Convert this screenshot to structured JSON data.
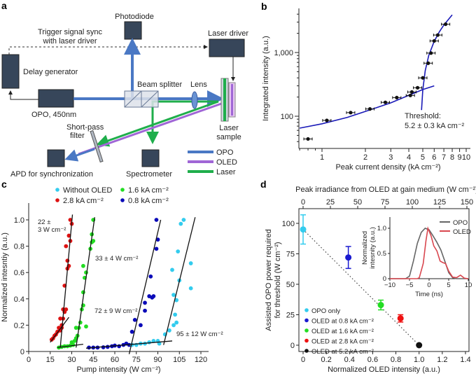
{
  "panels": {
    "a": {
      "label": "a",
      "components": {
        "photodiode": "Photodiode",
        "trigger": [
          "Trigger signal sync",
          "with laser driver"
        ],
        "laser_driver": "Laser driver",
        "delay_generator": "Delay generator",
        "opo": "OPO, 450nm",
        "beam_splitter": "Beam splitter",
        "lens": "Lens",
        "laser_sample": [
          "Laser",
          "sample"
        ],
        "short_pass": [
          "Short-pass",
          "filter"
        ],
        "apd": "APD for synchronization",
        "spectrometer": "Spectrometer"
      },
      "legend": [
        {
          "label": "OPO",
          "color": "#4a78c4"
        },
        {
          "label": "OLED",
          "color": "#a066d6"
        },
        {
          "label": "Laser",
          "color": "#1fae4b"
        }
      ]
    },
    "b": {
      "label": "b",
      "threshold_text": [
        "Threshold:",
        "5.2 ± 0.3 kA cm⁻²"
      ]
    },
    "c": {
      "label": "c"
    },
    "d": {
      "label": "d",
      "inset_legend": [
        {
          "label": "OPO",
          "color": "#666666"
        },
        {
          "label": "OLED",
          "color": "#d9474f"
        }
      ]
    }
  },
  "chart_data": [
    {
      "id": "b",
      "type": "scatter",
      "title": "",
      "xlabel": "Peak current density (kA cm⁻²)",
      "ylabel": "Integrated intensity (a.u.)",
      "xscale": "log",
      "yscale": "log",
      "xlim": [
        0.7,
        11
      ],
      "ylim": [
        32,
        4800
      ],
      "xticks": [
        1,
        2,
        3,
        4,
        5,
        6,
        7,
        8,
        9,
        10
      ],
      "xtick_labels": [
        "1",
        "2",
        "3",
        "4",
        "5",
        "6",
        "7",
        "8",
        "9",
        "10"
      ],
      "yticks": [
        100,
        1000
      ],
      "ytick_labels": [
        "100",
        "1,000"
      ],
      "points": [
        {
          "x": 0.8,
          "y": 44
        },
        {
          "x": 1.08,
          "y": 86
        },
        {
          "x": 1.58,
          "y": 114
        },
        {
          "x": 2.15,
          "y": 130
        },
        {
          "x": 2.75,
          "y": 165
        },
        {
          "x": 3.3,
          "y": 196
        },
        {
          "x": 4.1,
          "y": 212
        },
        {
          "x": 4.2,
          "y": 240
        },
        {
          "x": 4.6,
          "y": 280
        },
        {
          "x": 5.0,
          "y": 400
        },
        {
          "x": 5.45,
          "y": 680
        },
        {
          "x": 5.7,
          "y": 980
        },
        {
          "x": 6.0,
          "y": 1520
        },
        {
          "x": 6.35,
          "y": 1880
        },
        {
          "x": 7.2,
          "y": 2780
        }
      ],
      "fits": [
        {
          "name": "below threshold",
          "color": "#1a1ab8",
          "points": [
            [
              0.7,
              65
            ],
            [
              1,
              76
            ],
            [
              1.5,
              96
            ],
            [
              2,
              119
            ],
            [
              3,
              162
            ],
            [
              4,
              213
            ],
            [
              5,
              262
            ],
            [
              6,
              300
            ]
          ]
        },
        {
          "name": "above threshold",
          "color": "#1a1ab8",
          "points": [
            [
              4.9,
              125
            ],
            [
              5.0,
              260
            ],
            [
              5.2,
              520
            ],
            [
              5.5,
              900
            ],
            [
              6.0,
              1500
            ],
            [
              6.5,
              2100
            ],
            [
              7.0,
              2700
            ],
            [
              8.0,
              3900
            ]
          ]
        }
      ],
      "annotation": "Threshold: 5.2 ± 0.3 kA cm⁻²"
    },
    {
      "id": "c",
      "type": "scatter",
      "xlabel": "Pump intensity (W cm⁻²)",
      "ylabel": "Normalized intesntiy (a.u.)",
      "xlim": [
        0,
        125
      ],
      "ylim": [
        0,
        1.08
      ],
      "xticks": [
        0,
        15,
        30,
        45,
        60,
        75,
        90,
        105,
        120
      ],
      "yticks": [
        0,
        0.2,
        0.4,
        0.6,
        0.8,
        1.0
      ],
      "ytick_labels": [
        "0",
        "0.2",
        "0.4",
        "0.6",
        "0.8",
        "1.0"
      ],
      "legend": [
        {
          "label": "Without OLED",
          "color": "#33ccee"
        },
        {
          "label": "1.6 kA cm⁻²",
          "color": "#22dd22"
        },
        {
          "label": "2.8 kA cm⁻²",
          "color": "#dd1111"
        },
        {
          "label": "0.8 kA cm⁻²",
          "color": "#0a0ab8"
        }
      ],
      "series": [
        {
          "name": "2.8 kA cm⁻²",
          "color": "#dd1111",
          "points": [
            [
              16,
              0.09
            ],
            [
              17,
              0.1
            ],
            [
              18,
              0.12
            ],
            [
              19,
              0.13
            ],
            [
              20,
              0.15
            ],
            [
              21,
              0.18
            ],
            [
              22,
              0.16
            ],
            [
              23,
              0.2
            ],
            [
              24,
              0.25
            ],
            [
              22,
              0.25
            ],
            [
              25,
              0.3
            ],
            [
              26,
              0.32
            ],
            [
              25,
              0.5
            ],
            [
              27,
              0.63
            ],
            [
              28,
              0.65
            ],
            [
              27,
              0.69
            ],
            [
              26,
              0.8
            ],
            [
              29,
              0.84
            ],
            [
              28,
              0.88
            ],
            [
              30,
              0.97
            ],
            [
              29,
              1.0
            ],
            [
              23,
              0.18
            ],
            [
              24,
              0.32
            ]
          ]
        },
        {
          "name": "1.6 kA cm⁻²",
          "color": "#22dd22",
          "points": [
            [
              21,
              0.03
            ],
            [
              23,
              0.035
            ],
            [
              25,
              0.04
            ],
            [
              27,
              0.04
            ],
            [
              29,
              0.045
            ],
            [
              31,
              0.05
            ],
            [
              30,
              0.07
            ],
            [
              32,
              0.08
            ],
            [
              33,
              0.1
            ],
            [
              34,
              0.12
            ],
            [
              33,
              0.18
            ],
            [
              35,
              0.18
            ],
            [
              36,
              0.22
            ],
            [
              40,
              0.19
            ],
            [
              37,
              0.32
            ],
            [
              38,
              0.35
            ],
            [
              38,
              0.45
            ],
            [
              39,
              0.56
            ],
            [
              40,
              0.6
            ],
            [
              38,
              0.65
            ],
            [
              43,
              0.78
            ],
            [
              44,
              0.83
            ],
            [
              45,
              0.84
            ],
            [
              44,
              0.89
            ],
            [
              45,
              1.0
            ]
          ]
        },
        {
          "name": "0.8 kA cm⁻²",
          "color": "#0a0ab8",
          "points": [
            [
              42,
              0.03
            ],
            [
              45,
              0.03
            ],
            [
              48,
              0.03
            ],
            [
              52,
              0.032
            ],
            [
              55,
              0.035
            ],
            [
              58,
              0.04
            ],
            [
              60,
              0.045
            ],
            [
              63,
              0.04
            ],
            [
              66,
              0.05
            ],
            [
              68,
              0.06
            ],
            [
              70,
              0.05
            ],
            [
              72,
              0.15
            ],
            [
              74,
              0.24
            ],
            [
              78,
              0.2
            ],
            [
              81,
              0.31
            ],
            [
              81,
              0.37
            ],
            [
              84,
              0.42
            ],
            [
              86,
              0.41
            ],
            [
              87,
              0.42
            ],
            [
              85,
              0.57
            ],
            [
              89,
              0.78
            ],
            [
              90,
              0.85
            ],
            [
              89,
              1.0
            ]
          ]
        },
        {
          "name": "Without OLED",
          "color": "#33ccee",
          "points": [
            [
              72,
              0.05
            ],
            [
              75,
              0.05
            ],
            [
              78,
              0.06
            ],
            [
              81,
              0.06
            ],
            [
              84,
              0.07
            ],
            [
              87,
              0.08
            ],
            [
              90,
              0.08
            ],
            [
              91,
              0.06
            ],
            [
              95,
              0.13
            ],
            [
              98,
              0.16
            ],
            [
              101,
              0.2
            ],
            [
              103,
              0.22
            ],
            [
              102,
              0.28
            ],
            [
              103,
              0.39
            ],
            [
              101,
              0.43
            ],
            [
              105,
              0.54
            ],
            [
              100,
              0.62
            ],
            [
              113,
              0.48
            ],
            [
              113,
              0.67
            ],
            [
              104,
              0.76
            ],
            [
              106,
              0.97
            ],
            [
              108,
              1.0
            ]
          ]
        }
      ],
      "fit_lines": [
        [
          [
            15,
            0.07
          ],
          [
            28,
            0.26
          ]
        ],
        [
          [
            22,
            0.03
          ],
          [
            30.5,
            1.04
          ]
        ],
        [
          [
            20,
            0.03
          ],
          [
            38,
            0.055
          ]
        ],
        [
          [
            33,
            0.03
          ],
          [
            46,
            1.02
          ]
        ],
        [
          [
            40,
            0.025
          ],
          [
            100,
            0.08
          ]
        ],
        [
          [
            70,
            -0.02
          ],
          [
            92,
            1.0
          ]
        ],
        [
          [
            94,
            0.05
          ],
          [
            116,
            1.02
          ]
        ]
      ],
      "annotations": [
        "22 ± 3 W cm⁻²",
        "33 ± 4 W cm⁻²",
        "72 ± 9 W cm⁻²",
        "95 ± 12 W cm⁻²"
      ]
    },
    {
      "id": "d",
      "type": "scatter",
      "xlabel": "Normalized OLED intensity (a.u.)",
      "x2label": "Peak irradiance from OLED at gain medium (W cm⁻²)",
      "ylabel": "Assisted OPO power required for threshold (W cm⁻²)",
      "xlim": [
        -0.1,
        1.45
      ],
      "ylim": [
        -8,
        110
      ],
      "xticks": [
        0,
        0.2,
        0.4,
        0.6,
        0.8,
        1.0,
        1.2,
        1.4
      ],
      "x2ticks": [
        0,
        25,
        50,
        75,
        100,
        125,
        150
      ],
      "yticks": [
        0,
        25,
        50,
        75,
        100
      ],
      "points": [
        {
          "label": "OPO only",
          "x": 0,
          "y": 95,
          "err": 12,
          "color": "#33ccee"
        },
        {
          "label": "OLED at 0.8 kA cm⁻²",
          "x": 0.39,
          "y": 72,
          "err": 9,
          "color": "#1a1ad0"
        },
        {
          "label": "OLED at 1.6 kA cm⁻²",
          "x": 0.67,
          "y": 33,
          "err": 4,
          "color": "#22dd22"
        },
        {
          "label": "OLED at 2.8 kA cm⁻²",
          "x": 0.84,
          "y": 22,
          "err": 3,
          "color": "#ee1111"
        },
        {
          "label": "OLED at 5.2 kA cm⁻²",
          "x": 1.0,
          "y": 0,
          "err": 0,
          "color": "#111111"
        }
      ],
      "trend_line": [
        [
          0,
          95
        ],
        [
          1.0,
          0
        ]
      ],
      "inset": {
        "type": "line",
        "xlabel": "Time (ns)",
        "ylabel": "Normalized intesnity (a.u.)",
        "xlim": [
          -10,
          10
        ],
        "ylim": [
          0,
          1.25
        ],
        "xticks": [
          -10,
          -5,
          0,
          5,
          10
        ],
        "yticks": [
          0,
          0.5,
          1.0
        ],
        "ytick_labels": [
          "0",
          "0.5",
          "1.0"
        ],
        "series": [
          {
            "name": "OPO",
            "color": "#666666",
            "points": [
              [
                -10,
                0
              ],
              [
                -6,
                0
              ],
              [
                -5,
                0.05
              ],
              [
                -4,
                0.35
              ],
              [
                -3,
                0.7
              ],
              [
                -2,
                0.92
              ],
              [
                -1,
                1.0
              ],
              [
                0,
                0.97
              ],
              [
                1,
                0.85
              ],
              [
                2,
                0.72
              ],
              [
                3,
                0.57
              ],
              [
                4,
                0.35
              ],
              [
                5,
                0.12
              ],
              [
                6,
                0.02
              ],
              [
                7,
                0
              ],
              [
                10,
                0
              ]
            ]
          },
          {
            "name": "OLED",
            "color": "#d9474f",
            "points": [
              [
                -10,
                0
              ],
              [
                -3,
                0
              ],
              [
                -2.5,
                0.02
              ],
              [
                -1.5,
                0.3
              ],
              [
                -0.8,
                0.75
              ],
              [
                -0.3,
                1.0
              ],
              [
                0.5,
                0.85
              ],
              [
                1.2,
                0.65
              ],
              [
                2,
                0.55
              ],
              [
                2.8,
                0.35
              ],
              [
                3.5,
                0.32
              ],
              [
                4.2,
                0.3
              ],
              [
                5,
                0.15
              ],
              [
                6,
                0.03
              ],
              [
                7,
                0.02
              ],
              [
                8,
                0.07
              ],
              [
                9,
                0.01
              ],
              [
                10,
                0
              ]
            ]
          }
        ]
      }
    }
  ]
}
